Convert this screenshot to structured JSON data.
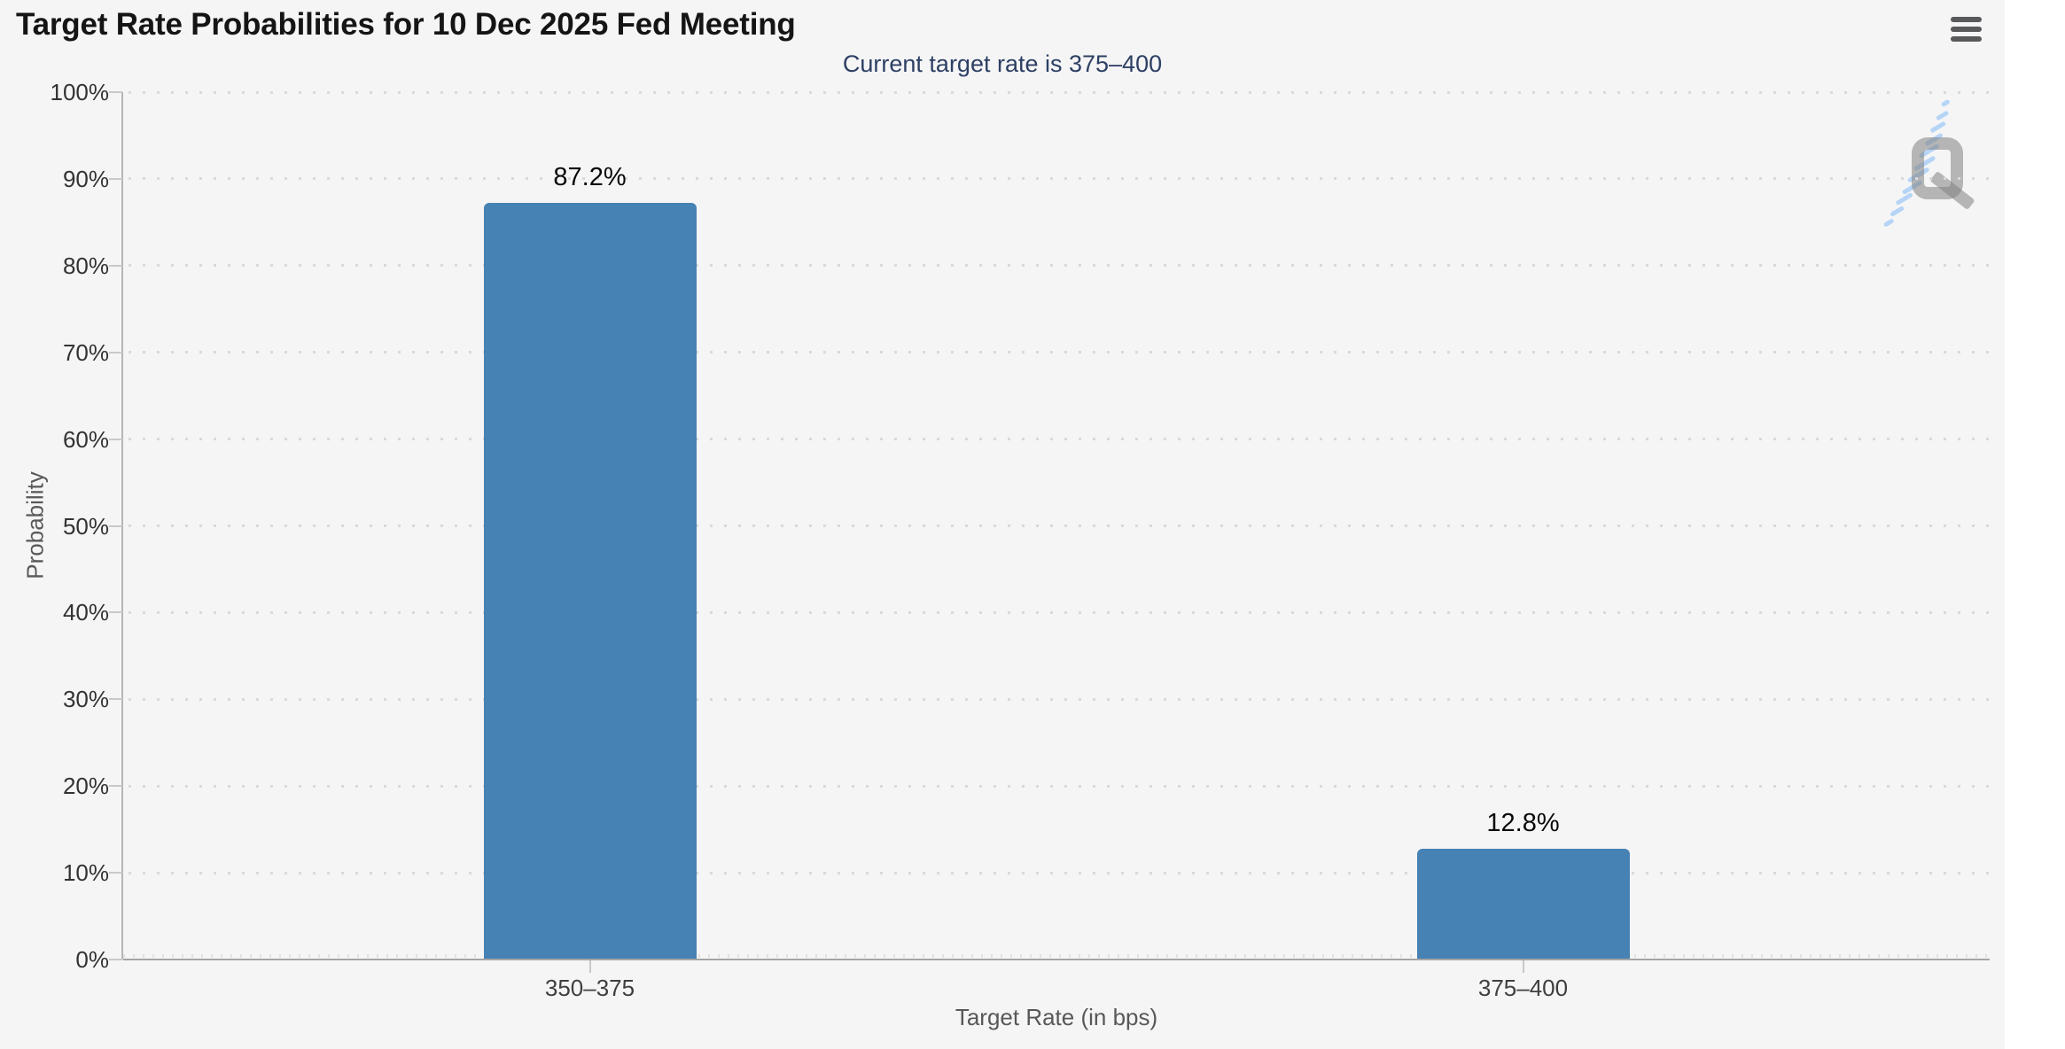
{
  "header": {
    "title": "Target Rate Probabilities for 10 Dec 2025 Fed Meeting",
    "subtitle": "Current target rate is 375–400",
    "menu_icon": "hamburger-menu-icon"
  },
  "watermark": {
    "name": "quikstrike-logo",
    "letter": "Q"
  },
  "colors": {
    "bar": "#4682b4",
    "chart_background": "#f5f5f6",
    "page_background": "#ffffff",
    "title_text": "#151515",
    "subtitle_text": "#2d3f63",
    "axis_title_text": "#585858",
    "tick_label_text": "#333333",
    "category_label_text": "#3f3f3f",
    "value_label_text": "#0a0a0a",
    "gridline": "#d9d9d9",
    "axis_line": "#a5a5a5",
    "menu_icon": "#58595b",
    "watermark_gray": "#808080",
    "watermark_blue": "#82b9f5"
  },
  "chart_data": {
    "type": "bar",
    "title": "Target Rate Probabilities for 10 Dec 2025 Fed Meeting",
    "subtitle": "Current target rate is 375–400",
    "xlabel": "Target Rate (in bps)",
    "ylabel": "Probability",
    "categories": [
      "350–375",
      "375–400"
    ],
    "values": [
      87.2,
      12.8
    ],
    "value_labels": [
      "87.2%",
      "12.8%"
    ],
    "ylim": [
      0,
      100
    ],
    "ytick_interval": 10,
    "ytick_values": [
      0,
      10,
      20,
      30,
      40,
      50,
      60,
      70,
      80,
      90,
      100
    ],
    "ytick_labels": [
      "0%",
      "10%",
      "20%",
      "30%",
      "40%",
      "50%",
      "60%",
      "70%",
      "80%",
      "90%",
      "100%"
    ],
    "grid": "dotted-horizontal",
    "legend": "none"
  }
}
